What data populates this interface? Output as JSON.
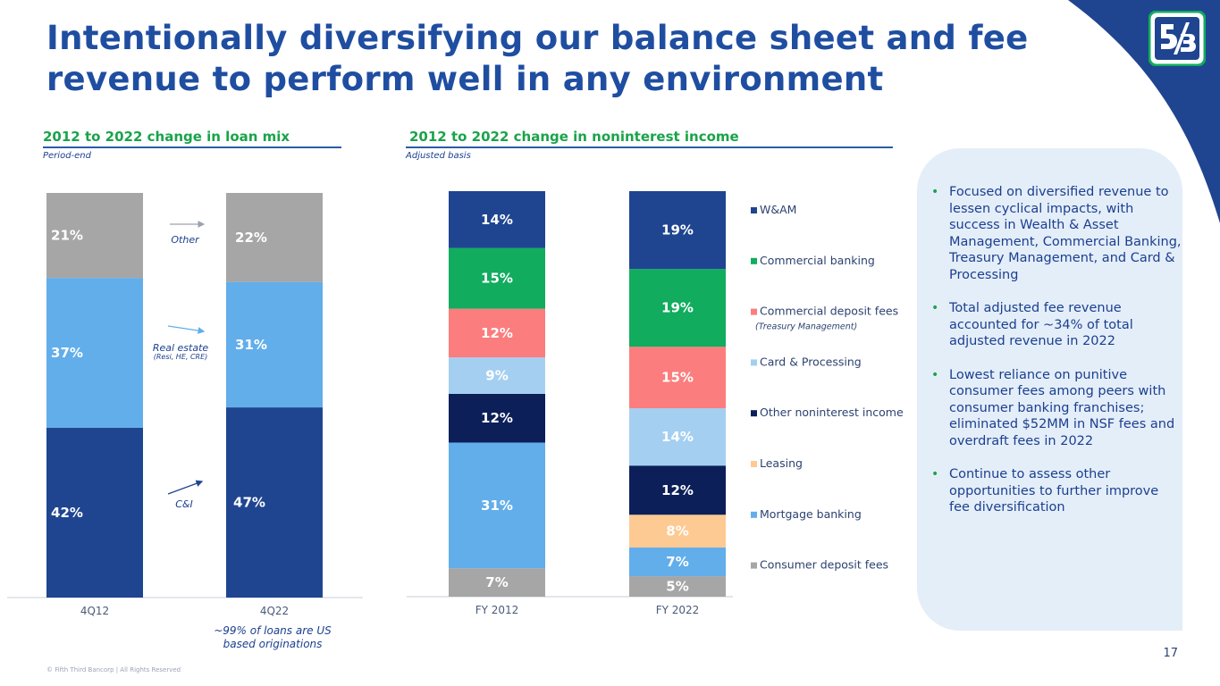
{
  "title": "Intentionally diversifying our balance sheet and fee revenue to perform well in any environment",
  "left": {
    "section_title": "2012 to 2022 change in loan mix",
    "subtitle": "Period-end",
    "annotations": {
      "other": "Other",
      "real_estate": "Real estate",
      "real_estate_sub": "(Resi, HE, CRE)",
      "ci": "C&I"
    },
    "footnote": "~99% of loans are US based originations"
  },
  "middle": {
    "section_title": "2012 to 2022 change in noninterest income",
    "subtitle": "Adjusted basis"
  },
  "chart_data": [
    {
      "type": "bar",
      "stacked": true,
      "percent": true,
      "categories": [
        "4Q12",
        "4Q22"
      ],
      "series": [
        {
          "name": "C&I",
          "values": [
            42,
            47
          ],
          "color": "#1f4591"
        },
        {
          "name": "Real estate",
          "values": [
            37,
            31
          ],
          "color": "#62aeea"
        },
        {
          "name": "Other",
          "values": [
            21,
            22
          ],
          "color": "#a6a6a6"
        }
      ]
    },
    {
      "type": "bar",
      "stacked": true,
      "percent": true,
      "categories": [
        "FY 2012",
        "FY 2022"
      ],
      "series": [
        {
          "name": "Consumer deposit fees",
          "values": [
            7,
            5
          ],
          "color": "#a6a6a6"
        },
        {
          "name": "Mortgage banking",
          "values": [
            31,
            7
          ],
          "color": "#62aeea"
        },
        {
          "name": "Leasing",
          "values": [
            0,
            8
          ],
          "color": "#fdca93"
        },
        {
          "name": "Other noninterest income",
          "values": [
            12,
            12
          ],
          "color": "#0c1f59"
        },
        {
          "name": "Card & Processing",
          "values": [
            9,
            14
          ],
          "color": "#a4cff1"
        },
        {
          "name": "Commercial deposit fees",
          "sublabel": "(Treasury Management)",
          "values": [
            12,
            15
          ],
          "color": "#fb7d7d"
        },
        {
          "name": "Commercial banking",
          "values": [
            15,
            19
          ],
          "color": "#11ac5e"
        },
        {
          "name": "W&AM",
          "values": [
            14,
            19
          ],
          "color": "#1f4591"
        }
      ]
    }
  ],
  "bullets": [
    "Focused on diversified revenue to lessen cyclical impacts, with success in Wealth & Asset Management, Commercial Banking, Treasury Management, and Card & Processing",
    "Total adjusted fee revenue accounted for ~34% of total adjusted revenue in 2022",
    "Lowest reliance on punitive consumer fees among peers with consumer banking franchises; eliminated $52MM in NSF fees and overdraft fees in 2022",
    "Continue to assess other opportunities to further improve fee diversification"
  ],
  "page_number": "17",
  "copyright": "© Fifth Third Bancorp | All Rights Reserved",
  "colors": {
    "accent_blue": "#1f4ea1",
    "accent_green": "#1aa34a",
    "panel": "#e4eef9"
  }
}
